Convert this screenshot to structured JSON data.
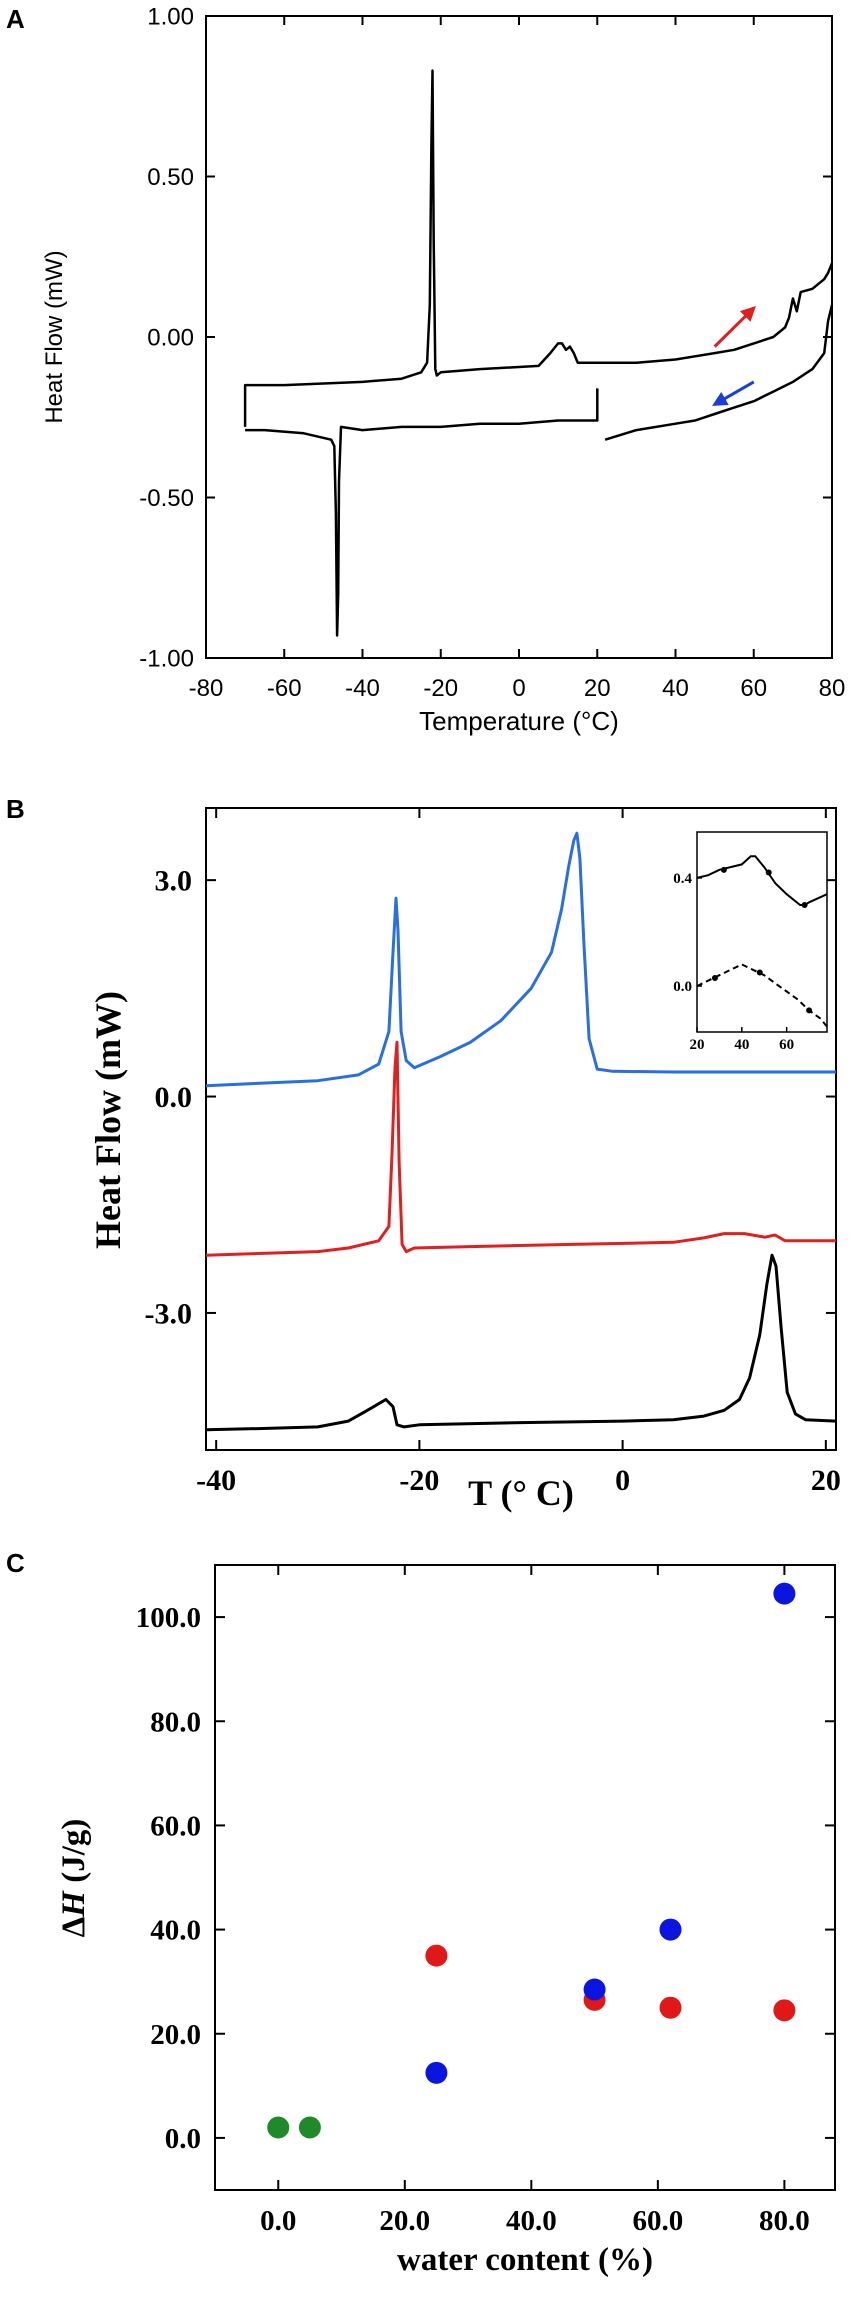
{
  "chart_data": [
    {
      "panel": "A",
      "type": "line",
      "xlabel": "Temperature (°C)",
      "ylabel": "Heat Flow (mW)",
      "xlim": [
        -80,
        80
      ],
      "ylim": [
        -1.0,
        1.0
      ],
      "xticks": [
        -80,
        -60,
        -40,
        -20,
        0,
        20,
        40,
        60,
        80
      ],
      "yticks": [
        1.0,
        0.5,
        0.0,
        -0.5,
        -1.0
      ],
      "xtick_labels": [
        "-80",
        "-60",
        "-40",
        "-20",
        "0",
        "20",
        "40",
        "60",
        "80"
      ],
      "ytick_labels": [
        "1.00",
        "0.50",
        "0.00",
        "-0.50",
        "-1.00"
      ],
      "annotations": [
        {
          "name": "heating-arrow",
          "direction": "heating",
          "color": "#e02020",
          "x": [
            50,
            60
          ],
          "y": [
            -0.03,
            0.09
          ]
        },
        {
          "name": "cooling-arrow",
          "direction": "cooling",
          "color": "#1a3fd6",
          "x": [
            60,
            50
          ],
          "y": [
            -0.14,
            -0.21
          ]
        }
      ],
      "series": [
        {
          "name": "heating",
          "color": "#000000",
          "x": [
            -70,
            -70,
            -60,
            -40,
            -30,
            -25,
            -23.5,
            -22.8,
            -22.4,
            -22.1,
            -21.8,
            -21.4,
            -21,
            -20,
            -10,
            5,
            8,
            10,
            11,
            12,
            13,
            14,
            15,
            20,
            30,
            40,
            45,
            50,
            55,
            60,
            65,
            68,
            69,
            70,
            71,
            72,
            75,
            78,
            79,
            80
          ],
          "y": [
            -0.28,
            -0.15,
            -0.15,
            -0.14,
            -0.13,
            -0.11,
            -0.08,
            0.1,
            0.6,
            0.83,
            0.3,
            -0.1,
            -0.12,
            -0.11,
            -0.1,
            -0.09,
            -0.05,
            -0.02,
            -0.02,
            -0.04,
            -0.03,
            -0.05,
            -0.08,
            -0.08,
            -0.08,
            -0.07,
            -0.06,
            -0.05,
            -0.04,
            -0.02,
            0.0,
            0.03,
            0.06,
            0.12,
            0.08,
            0.14,
            0.15,
            0.18,
            0.2,
            0.23
          ]
        },
        {
          "name": "cooling",
          "color": "#000000",
          "x": [
            80,
            79,
            78,
            75,
            70,
            65,
            60,
            55,
            50,
            45,
            40,
            30,
            22
          ],
          "y": [
            0.1,
            0.05,
            -0.05,
            -0.1,
            -0.14,
            -0.17,
            -0.2,
            -0.22,
            -0.24,
            -0.26,
            -0.27,
            -0.29,
            -0.32
          ]
        },
        {
          "name": "cooling-low",
          "color": "#000000",
          "x": [
            20,
            20,
            10,
            0,
            -10,
            -20,
            -30,
            -40,
            -45.5,
            -46,
            -46.2,
            -46.5,
            -46.8,
            -47.2,
            -48,
            -55,
            -65,
            -70
          ],
          "y": [
            -0.16,
            -0.26,
            -0.26,
            -0.27,
            -0.27,
            -0.28,
            -0.28,
            -0.29,
            -0.28,
            -0.45,
            -0.8,
            -0.93,
            -0.55,
            -0.34,
            -0.32,
            -0.3,
            -0.29,
            -0.29
          ]
        }
      ]
    },
    {
      "panel": "B",
      "type": "line",
      "xlabel": "T (° C)",
      "ylabel": "Heat Flow (mW)",
      "xlim": [
        -41,
        21
      ],
      "ylim": [
        -4.9,
        4.0
      ],
      "xticks": [
        -40,
        -20,
        0,
        20
      ],
      "yticks": [
        3.0,
        0.0,
        -3.0
      ],
      "xtick_labels": [
        "-40",
        "-20",
        "0",
        "20"
      ],
      "ytick_labels": [
        "3.0",
        "0.0",
        "-3.0"
      ],
      "series": [
        {
          "name": "blue",
          "color": "#2a6ee0",
          "x": [
            -41,
            -30,
            -26,
            -24,
            -23,
            -22.6,
            -22.3,
            -22.1,
            -21.8,
            -21.3,
            -20.5,
            -18,
            -15,
            -12,
            -9,
            -7,
            -6,
            -5.3,
            -4.8,
            -4.5,
            -4.2,
            -3.8,
            -3.3,
            -2.5,
            -1,
            5,
            21
          ],
          "y": [
            0.15,
            0.22,
            0.3,
            0.45,
            0.9,
            2.0,
            2.75,
            2.3,
            0.9,
            0.5,
            0.4,
            0.55,
            0.75,
            1.05,
            1.5,
            2.0,
            2.6,
            3.2,
            3.55,
            3.65,
            3.3,
            2.1,
            0.8,
            0.38,
            0.35,
            0.34,
            0.34
          ]
        },
        {
          "name": "red",
          "color": "#e02020",
          "x": [
            -41,
            -30,
            -27,
            -24,
            -23,
            -22.7,
            -22.4,
            -22.2,
            -22.0,
            -21.7,
            -21.3,
            -20.5,
            -15,
            -5,
            5,
            8,
            10,
            12,
            14,
            15,
            16,
            21
          ],
          "y": [
            -2.2,
            -2.15,
            -2.1,
            -2.0,
            -1.8,
            -0.8,
            0.4,
            0.75,
            -0.9,
            -2.05,
            -2.15,
            -2.1,
            -2.08,
            -2.05,
            -2.02,
            -1.96,
            -1.9,
            -1.9,
            -1.95,
            -1.92,
            -2.0,
            -2.0
          ]
        },
        {
          "name": "black",
          "color": "#000000",
          "x": [
            -41,
            -35,
            -30,
            -27,
            -26,
            -24.5,
            -23.3,
            -22.6,
            -22.2,
            -21.5,
            -20,
            -10,
            0,
            5,
            8,
            10,
            11.5,
            12.5,
            13.5,
            14.2,
            14.7,
            15.1,
            15.6,
            16.2,
            17,
            18,
            21
          ],
          "y": [
            -4.62,
            -4.6,
            -4.58,
            -4.5,
            -4.42,
            -4.3,
            -4.2,
            -4.3,
            -4.55,
            -4.58,
            -4.55,
            -4.52,
            -4.5,
            -4.48,
            -4.43,
            -4.35,
            -4.2,
            -3.9,
            -3.3,
            -2.6,
            -2.2,
            -2.35,
            -3.2,
            -4.1,
            -4.4,
            -4.48,
            -4.5
          ]
        }
      ],
      "inset": {
        "xlim": [
          20,
          78
        ],
        "ylim": [
          -0.17,
          0.57
        ],
        "xticks": [
          20,
          40,
          60
        ],
        "yticks": [
          0.4,
          0.0
        ],
        "xtick_labels": [
          "20",
          "40",
          "60"
        ],
        "ytick_labels": [
          "0.4",
          "0.0"
        ],
        "series": [
          {
            "name": "inset-solid",
            "style": "solid",
            "color": "#000000",
            "x": [
              20,
              25,
              30,
              35,
              40,
              44,
              46,
              50,
              55,
              60,
              66,
              68,
              70,
              78
            ],
            "y": [
              0.4,
              0.41,
              0.43,
              0.44,
              0.45,
              0.48,
              0.48,
              0.44,
              0.38,
              0.34,
              0.3,
              0.3,
              0.31,
              0.34
            ],
            "markers_x": [
              32,
              52,
              68
            ],
            "markers_y": [
              0.43,
              0.42,
              0.3
            ]
          },
          {
            "name": "inset-dashed",
            "style": "dashed",
            "color": "#000000",
            "x": [
              20,
              25,
              30,
              35,
              40,
              45,
              50,
              55,
              60,
              65,
              70,
              75,
              78
            ],
            "y": [
              0.0,
              0.02,
              0.04,
              0.06,
              0.08,
              0.06,
              0.04,
              0.01,
              -0.02,
              -0.05,
              -0.09,
              -0.12,
              -0.15
            ],
            "markers_x": [
              28,
              48,
              70
            ],
            "markers_y": [
              0.03,
              0.05,
              -0.09
            ]
          }
        ]
      }
    },
    {
      "panel": "C",
      "type": "scatter",
      "xlabel": "water content (%)",
      "ylabel": "ΔH (J/g)",
      "xlim": [
        -10,
        88
      ],
      "ylim": [
        -10,
        110
      ],
      "xticks": [
        0,
        20,
        40,
        60,
        80
      ],
      "yticks": [
        0,
        20,
        40,
        60,
        80,
        100
      ],
      "xtick_labels": [
        "0.0",
        "20.0",
        "40.0",
        "60.0",
        "80.0"
      ],
      "ytick_labels": [
        "0.0",
        "20.0",
        "40.0",
        "60.0",
        "80.0",
        "100.0"
      ],
      "series": [
        {
          "name": "green",
          "color": "#1e8a2a",
          "x": [
            0,
            5
          ],
          "y": [
            2,
            2
          ]
        },
        {
          "name": "red",
          "color": "#e01818",
          "x": [
            25,
            50,
            62,
            80
          ],
          "y": [
            35,
            26.5,
            25,
            24.5
          ]
        },
        {
          "name": "blue",
          "color": "#0a16e0",
          "x": [
            25,
            50,
            62,
            80
          ],
          "y": [
            12.5,
            28.5,
            40,
            104.5
          ]
        }
      ]
    }
  ],
  "panels": {
    "a": {
      "letter": "A"
    },
    "b": {
      "letter": "B"
    },
    "c": {
      "letter": "C",
      "ylabel_prefix": "Δ",
      "ylabel_var": "H",
      "ylabel_unit": " (J/g)"
    }
  }
}
